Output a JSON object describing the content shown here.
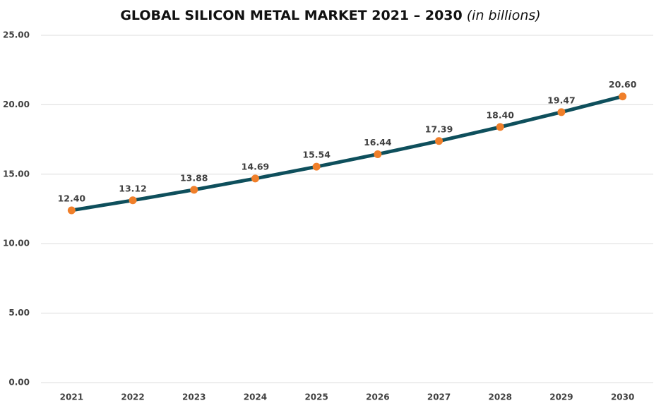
{
  "chart_data": {
    "type": "line",
    "title": "GLOBAL SILICON METAL MARKET 2021 – 2030",
    "subtitle": "(in billions)",
    "categories": [
      "2021",
      "2022",
      "2023",
      "2024",
      "2025",
      "2026",
      "2027",
      "2028",
      "2029",
      "2030"
    ],
    "values": [
      12.4,
      13.12,
      13.88,
      14.69,
      15.54,
      16.44,
      17.39,
      18.4,
      19.47,
      20.6
    ],
    "value_labels": [
      "12.40",
      "13.12",
      "13.88",
      "14.69",
      "15.54",
      "16.44",
      "17.39",
      "18.40",
      "19.47",
      "20.60"
    ],
    "line_color": "#0e4f5c",
    "marker_color": "#f07f2a",
    "ylim": [
      0,
      25
    ],
    "yticks": [
      {
        "value": 0,
        "label": "0.00"
      },
      {
        "value": 5,
        "label": "5.00"
      },
      {
        "value": 10,
        "label": "10.00"
      },
      {
        "value": 15,
        "label": "15.00"
      },
      {
        "value": 20,
        "label": "20.00"
      },
      {
        "value": 25,
        "label": "25.00"
      }
    ],
    "grid": true
  }
}
